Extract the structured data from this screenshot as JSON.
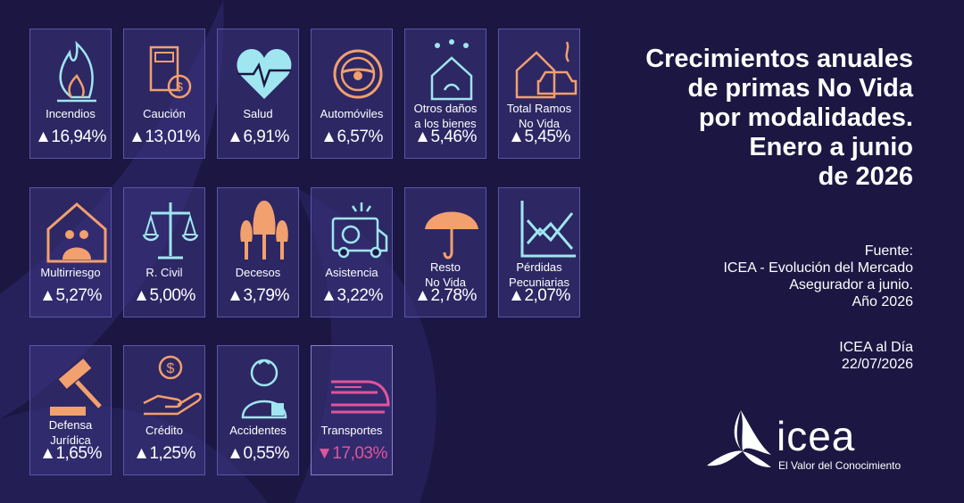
{
  "tiles": [
    {
      "label": [
        "Incendios"
      ],
      "value": "▲16,94%"
    },
    {
      "label": [
        "Caución"
      ],
      "value": "▲13,01%"
    },
    {
      "label": [
        "Salud"
      ],
      "value": "▲6,91%"
    },
    {
      "label": [
        "Automóviles"
      ],
      "value": "▲6,57%"
    },
    {
      "label": [
        "Otros daños",
        "a los bienes"
      ],
      "value": "▲5,46%"
    },
    {
      "label": [
        "Total Ramos",
        "No Vida"
      ],
      "value": "▲5,45%"
    },
    {
      "label": [
        "Multirriesgo"
      ],
      "value": "▲5,27%"
    },
    {
      "label": [
        "R. Civil"
      ],
      "value": "▲5,00%"
    },
    {
      "label": [
        "Decesos"
      ],
      "value": "▲3,79%"
    },
    {
      "label": [
        "Asistencia"
      ],
      "value": "▲3,22%"
    },
    {
      "label": [
        "Resto",
        "No Vida"
      ],
      "value": "▲2,78%"
    },
    {
      "label": [
        "Pérdidas",
        "Pecuniarias"
      ],
      "value": "▲2,07%"
    },
    {
      "label": [
        "Defensa",
        "Jurídica"
      ],
      "value": "▲1,65%"
    },
    {
      "label": [
        "Crédito"
      ],
      "value": "▲1,25%"
    },
    {
      "label": [
        "Accidentes"
      ],
      "value": "▲0,55%"
    },
    {
      "label": [
        "Transportes"
      ],
      "value": "▼17,03%",
      "color": "#e0559a"
    }
  ],
  "title": [
    "Crecimientos anuales",
    "de primas No Vida",
    "por modalidades.",
    "Enero a junio",
    "de 2026"
  ],
  "source": [
    "Fuente:",
    "ICEA - Evolución del Mercado",
    "Asegurador a junio.",
    "Año 2026"
  ],
  "footer": [
    "ICEA al Día",
    "22/07/2026"
  ],
  "brand": "icea",
  "tagline": "El Valor del Conocimiento"
}
